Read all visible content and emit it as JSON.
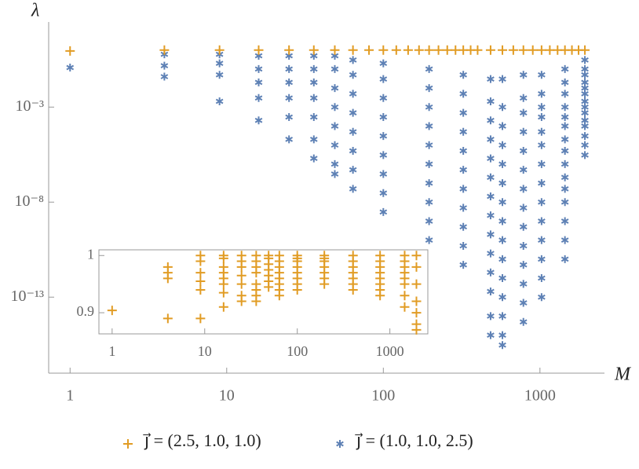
{
  "chart_data": [
    {
      "type": "scatter",
      "xlabel": "M",
      "ylabel": "λ",
      "xscale": "log",
      "yscale": "log",
      "xlim": [
        0.73,
        2300
      ],
      "ylim": [
        1e-17,
        30
      ],
      "xticks": [
        1,
        10,
        100,
        1000
      ],
      "yticks": [
        {
          "value": 0.001,
          "label": "10⁻³"
        },
        {
          "value": 1e-08,
          "label": "10⁻⁸"
        },
        {
          "value": 1e-13,
          "label": "10⁻¹³"
        }
      ],
      "legend": "bottom",
      "series": [
        {
          "name": "j⃗ = (2.5, 1.0, 1.0)",
          "color": "#e19c24",
          "marker": "plus",
          "x": [
            1,
            4,
            9,
            16,
            25,
            36,
            49,
            64,
            81,
            100,
            121,
            144,
            169,
            196,
            225,
            256,
            289,
            324,
            361,
            400,
            484,
            576,
            676,
            784,
            900,
            1024,
            1156,
            1296,
            1444,
            1600,
            1764,
            1936
          ],
          "values": [
            0.9,
            1,
            1,
            1,
            1,
            1,
            1,
            1,
            1,
            1,
            1,
            1,
            1,
            1,
            1,
            1,
            1,
            1,
            1,
            1,
            1,
            1,
            1,
            1,
            1,
            1,
            1,
            1,
            1,
            1,
            1,
            1
          ]
        },
        {
          "name": "j⃗ = (1.0, 1.0, 2.5)",
          "color": "#5e81b5",
          "marker": "asterisk",
          "x": [
            1,
            4,
            4,
            4,
            9,
            9,
            9,
            9,
            16,
            16,
            16,
            16,
            16,
            25,
            25,
            25,
            25,
            25,
            25,
            36,
            36,
            36,
            36,
            36,
            36,
            36,
            49,
            49,
            49,
            49,
            49,
            49,
            49,
            49,
            64,
            64,
            64,
            64,
            64,
            64,
            64,
            64,
            100,
            100,
            100,
            100,
            100,
            100,
            100,
            100,
            100,
            196,
            196,
            196,
            196,
            196,
            196,
            196,
            196,
            196,
            196,
            324,
            324,
            324,
            324,
            324,
            324,
            324,
            324,
            324,
            324,
            324,
            484,
            484,
            484,
            484,
            484,
            484,
            484,
            484,
            484,
            484,
            484,
            484,
            484,
            484,
            576,
            576,
            576,
            576,
            576,
            576,
            576,
            576,
            576,
            576,
            576,
            576,
            576,
            576,
            576,
            784,
            784,
            784,
            784,
            784,
            784,
            784,
            784,
            784,
            784,
            784,
            784,
            784,
            784,
            1024,
            1024,
            1024,
            1024,
            1024,
            1024,
            1024,
            1024,
            1024,
            1024,
            1024,
            1024,
            1024,
            1024,
            1444,
            1444,
            1444,
            1444,
            1444,
            1444,
            1444,
            1444,
            1444,
            1444,
            1444,
            1444,
            1444,
            1444,
            1444,
            1936,
            1936,
            1936,
            1936,
            1936,
            1936,
            1936,
            1936,
            1936,
            1936,
            1936,
            1936,
            1936,
            1936
          ],
          "values": [
            0.12,
            0.6,
            0.15,
            0.04,
            0.6,
            0.2,
            0.05,
            0.002,
            0.5,
            0.1,
            0.02,
            0.003,
            0.0002,
            0.5,
            0.1,
            0.02,
            0.003,
            0.0003,
            2e-05,
            0.5,
            0.1,
            0.02,
            0.003,
            0.0003,
            2e-05,
            2e-06,
            0.5,
            0.1,
            0.01,
            0.001,
            0.0001,
            1e-05,
            1e-06,
            3e-07,
            0.3,
            0.05,
            0.005,
            0.0005,
            5e-05,
            5e-06,
            5e-07,
            5e-08,
            0.2,
            0.03,
            0.003,
            0.0003,
            3e-05,
            3e-06,
            3e-07,
            3e-08,
            3e-09,
            0.1,
            0.01,
            0.001,
            0.0001,
            1e-05,
            1e-06,
            1e-07,
            1e-08,
            1e-09,
            1e-10,
            0.05,
            0.005,
            0.0005,
            5e-05,
            5e-06,
            5e-07,
            5e-08,
            5e-09,
            5e-10,
            5e-11,
            5e-12,
            0.03,
            0.002,
            0.0002,
            2e-05,
            2e-06,
            2e-07,
            2e-08,
            2e-09,
            2e-10,
            2e-11,
            2e-12,
            2e-13,
            1e-14,
            1e-15,
            0.03,
            0.001,
            0.0001,
            1e-05,
            1e-06,
            1e-07,
            1e-08,
            1e-09,
            1e-10,
            1e-11,
            1e-12,
            1e-13,
            1e-14,
            1e-15,
            3e-16,
            0.05,
            0.003,
            0.0005,
            5e-05,
            5e-06,
            5e-07,
            5e-08,
            5e-09,
            5e-10,
            5e-11,
            5e-12,
            5e-13,
            5e-14,
            5e-15,
            0.05,
            0.005,
            0.001,
            0.0003,
            5e-05,
            1e-05,
            1e-06,
            1e-07,
            1e-08,
            1e-09,
            1e-10,
            1e-11,
            1e-12,
            1e-13,
            0.1,
            0.02,
            0.005,
            0.001,
            0.0003,
            0.0001,
            2e-05,
            5e-06,
            1e-06,
            2e-07,
            5e-08,
            1e-08,
            1e-09,
            1e-10,
            1e-11,
            0.3,
            0.1,
            0.05,
            0.02,
            0.01,
            0.005,
            0.002,
            0.001,
            0.0005,
            0.0002,
            0.0001,
            3e-05,
            1e-05,
            3e-06
          ]
        }
      ]
    },
    {
      "type": "scatter",
      "xscale": "log",
      "yscale": "linear",
      "xlim": [
        0.72,
        2570
      ],
      "ylim": [
        0.863,
        1.01
      ],
      "xticks": [
        1,
        10,
        100,
        1000
      ],
      "yticks": [
        0.9,
        1
      ],
      "series": [
        {
          "color": "#e19c24",
          "marker": "plus",
          "x": [
            1,
            4,
            4,
            4,
            4,
            9,
            9,
            9,
            9,
            9,
            9,
            16,
            16,
            16,
            16,
            16,
            16,
            16,
            16,
            25,
            25,
            25,
            25,
            25,
            25,
            25,
            36,
            36,
            36,
            36,
            36,
            36,
            36,
            36,
            49,
            49,
            49,
            49,
            49,
            49,
            49,
            64,
            64,
            64,
            64,
            64,
            64,
            64,
            64,
            100,
            100,
            100,
            100,
            100,
            100,
            100,
            100,
            196,
            196,
            196,
            196,
            196,
            196,
            196,
            400,
            400,
            400,
            400,
            400,
            400,
            400,
            784,
            784,
            784,
            784,
            784,
            784,
            784,
            784,
            1444,
            1444,
            1444,
            1444,
            1444,
            1444,
            1444,
            1444,
            1936,
            1936,
            1936,
            1936,
            1936,
            1936,
            1936
          ],
          "values": [
            0.904,
            0.98,
            0.97,
            0.96,
            0.89,
            1,
            0.99,
            0.97,
            0.955,
            0.94,
            0.89,
            1,
            0.995,
            0.98,
            0.97,
            0.96,
            0.95,
            0.935,
            0.91,
            1,
            0.99,
            0.98,
            0.965,
            0.95,
            0.93,
            0.92,
            1,
            0.99,
            0.98,
            0.97,
            0.95,
            0.94,
            0.93,
            0.92,
            1,
            0.995,
            0.985,
            0.975,
            0.965,
            0.955,
            0.945,
            1,
            0.99,
            0.98,
            0.97,
            0.96,
            0.95,
            0.94,
            0.93,
            1,
            0.995,
            0.99,
            0.98,
            0.97,
            0.96,
            0.95,
            0.94,
            1,
            0.995,
            0.99,
            0.98,
            0.97,
            0.96,
            0.95,
            1,
            0.99,
            0.98,
            0.97,
            0.96,
            0.95,
            0.94,
            1,
            0.99,
            0.98,
            0.97,
            0.96,
            0.95,
            0.94,
            0.93,
            1,
            0.99,
            0.98,
            0.97,
            0.96,
            0.95,
            0.93,
            0.91,
            1,
            0.98,
            0.95,
            0.92,
            0.9,
            0.88,
            0.87
          ]
        }
      ]
    }
  ]
}
